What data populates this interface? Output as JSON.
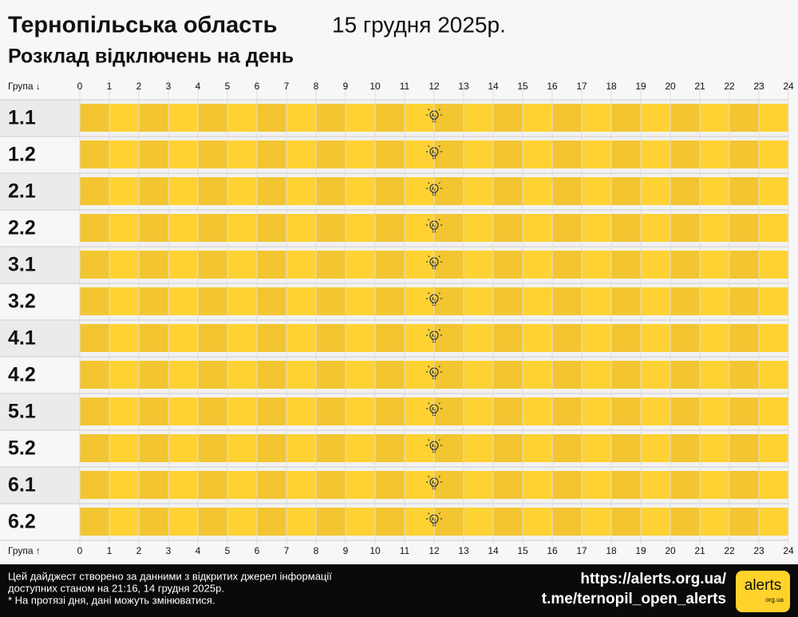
{
  "header": {
    "region": "Тернопільська область",
    "date": "15 грудня 2025р.",
    "subtitle": "Розклад відключень на день"
  },
  "axis": {
    "top_label": "Група ↓",
    "bottom_label": "Група ↑",
    "hours": [
      0,
      1,
      2,
      3,
      4,
      5,
      6,
      7,
      8,
      9,
      10,
      11,
      12,
      13,
      14,
      15,
      16,
      17,
      18,
      19,
      20,
      21,
      22,
      23,
      24
    ]
  },
  "groups": [
    "1.1",
    "1.2",
    "2.1",
    "2.2",
    "3.1",
    "3.2",
    "4.1",
    "4.2",
    "5.1",
    "5.2",
    "6.1",
    "6.2"
  ],
  "footer": {
    "note_lines": [
      "Цей дайджест створено за данними з відкритих джерел інформації",
      "доступних станом на 21:16, 14 грудня 2025р.",
      "* На протязі дня, дані можуть змінюватися."
    ],
    "links": [
      "https://alerts.org.ua/",
      "t.me/ternopil_open_alerts"
    ],
    "logo": "alerts",
    "logo_sub": "org.ua"
  }
}
